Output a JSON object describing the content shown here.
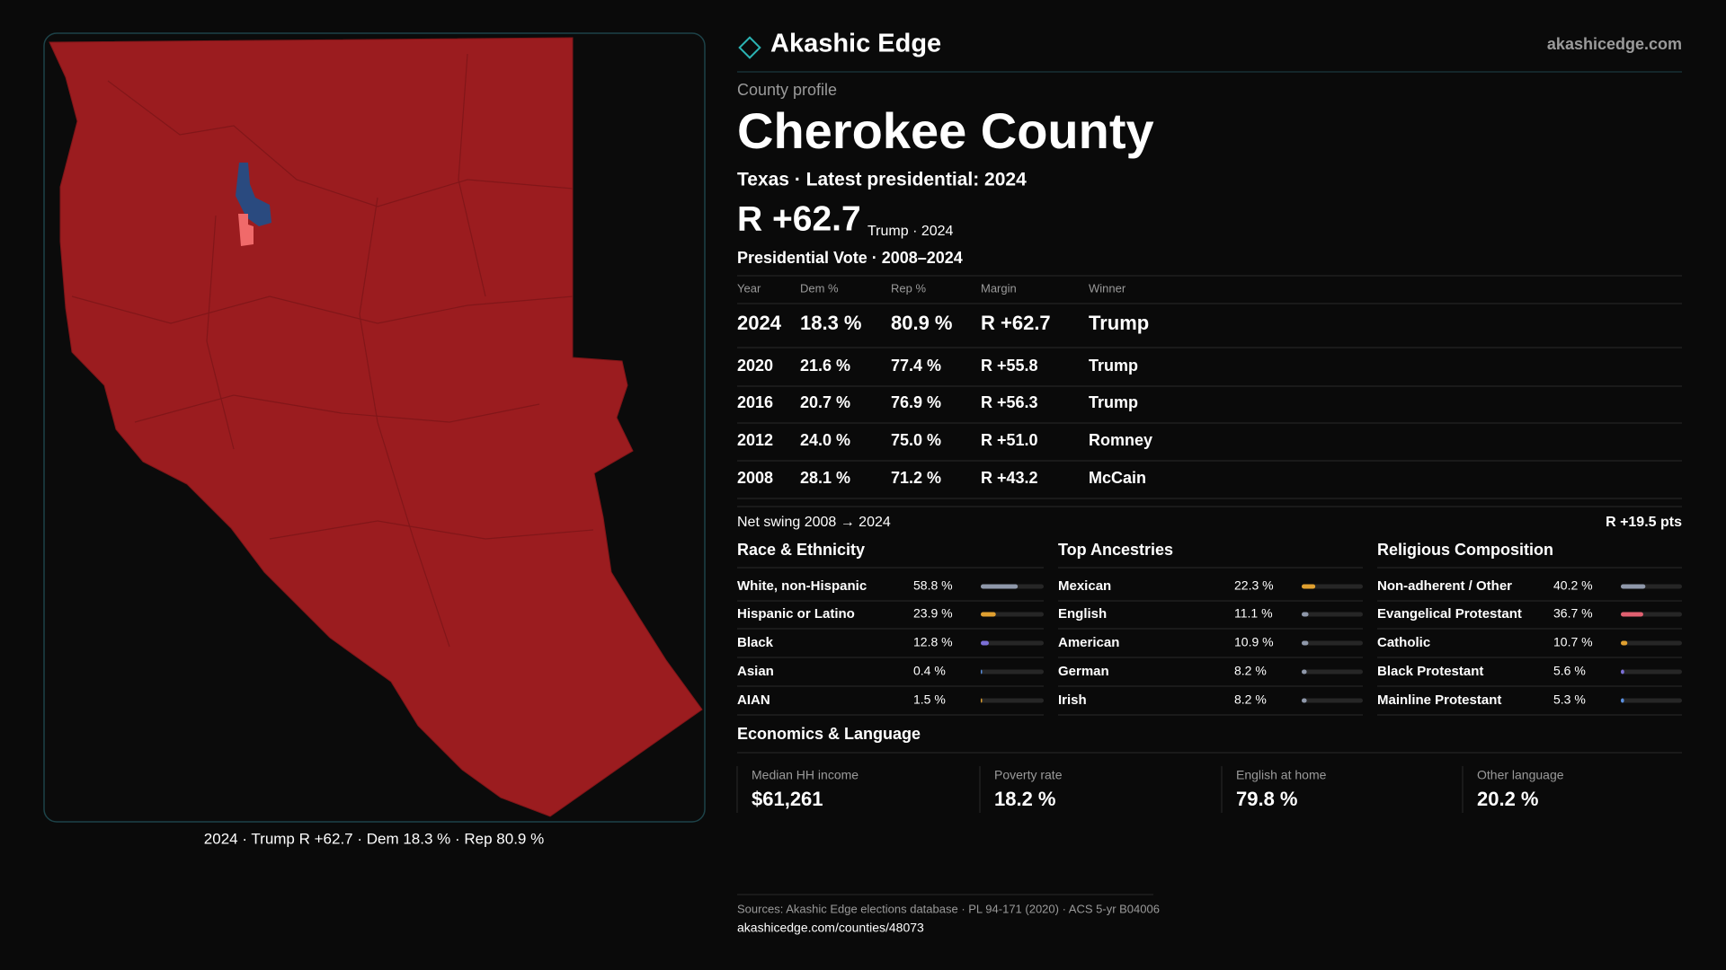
{
  "header": {
    "brand": "Akashic Edge",
    "site": "akashicedge.com"
  },
  "profile": {
    "eyebrow": "County profile",
    "name": "Cherokee County",
    "subtitle": "Texas · Latest presidential: 2024",
    "margin": "R +62.7",
    "margin_note": "Trump · 2024"
  },
  "map_caption": "2024 · Trump R +62.7 · Dem 18.3 % · Rep 80.9 %",
  "vote_table": {
    "title": "Presidential Vote · 2008–2024",
    "columns": [
      "Year",
      "Dem %",
      "Rep %",
      "Margin",
      "Winner"
    ],
    "rows": [
      [
        "2024",
        "18.3 %",
        "80.9 %",
        "R +62.7",
        "Trump"
      ],
      [
        "2020",
        "21.6 %",
        "77.4 %",
        "R +55.8",
        "Trump"
      ],
      [
        "2016",
        "20.7 %",
        "76.9 %",
        "R +56.3",
        "Trump"
      ],
      [
        "2012",
        "24.0 %",
        "75.0 %",
        "R +51.0",
        "Romney"
      ],
      [
        "2008",
        "28.1 %",
        "71.2 %",
        "R +43.2",
        "McCain"
      ]
    ]
  },
  "swing": {
    "label": "Net swing 2008 → 2024",
    "value": "R +19.5 pts"
  },
  "demographics": [
    {
      "title": "Race & Ethnicity",
      "rows": [
        {
          "name": "White, non-Hispanic",
          "share": {
            "value": 58.8,
            "label": "58.8 %"
          },
          "color": "#8f98aa"
        },
        {
          "name": "Hispanic or Latino",
          "share": {
            "value": 23.9,
            "label": "23.9 %"
          },
          "color": "#e0a030"
        },
        {
          "name": "Black",
          "share": {
            "value": 12.8,
            "label": "12.8 %"
          },
          "color": "#7b6fd6"
        },
        {
          "name": "Asian",
          "share": {
            "value": 0.4,
            "label": "0.4 %"
          },
          "color": "#5a8fe0"
        },
        {
          "name": "AIAN",
          "share": {
            "value": 1.5,
            "label": "1.5 %"
          },
          "color": "#e0a030"
        }
      ]
    },
    {
      "title": "Top Ancestries",
      "rows": [
        {
          "name": "Mexican",
          "share": {
            "value": 22.3,
            "label": "22.3 %"
          },
          "color": "#e0a030"
        },
        {
          "name": "English",
          "share": {
            "value": 11.1,
            "label": "11.1 %"
          },
          "color": "#8f98aa"
        },
        {
          "name": "American",
          "share": {
            "value": 10.9,
            "label": "10.9 %"
          },
          "color": "#8f98aa"
        },
        {
          "name": "German",
          "share": {
            "value": 8.2,
            "label": "8.2 %"
          },
          "color": "#8f98aa"
        },
        {
          "name": "Irish",
          "share": {
            "value": 8.2,
            "label": "8.2 %"
          },
          "color": "#8f98aa"
        }
      ]
    },
    {
      "title": "Religious Composition",
      "rows": [
        {
          "name": "Non-adherent / Other",
          "share": {
            "value": 40.2,
            "label": "40.2 %"
          },
          "color": "#8f98aa"
        },
        {
          "name": "Evangelical Protestant",
          "share": {
            "value": 36.7,
            "label": "36.7 %"
          },
          "color": "#e06070"
        },
        {
          "name": "Catholic",
          "share": {
            "value": 10.7,
            "label": "10.7 %"
          },
          "color": "#e0a030"
        },
        {
          "name": "Black Protestant",
          "share": {
            "value": 5.6,
            "label": "5.6 %"
          },
          "color": "#7b6fd6"
        },
        {
          "name": "Mainline Protestant",
          "share": {
            "value": 5.3,
            "label": "5.3 %"
          },
          "color": "#5a8fe0"
        }
      ]
    }
  ],
  "economics": {
    "title": "Economics & Language",
    "items": [
      {
        "label": "Median HH income",
        "value": "$61,261"
      },
      {
        "label": "Poverty rate",
        "value": "18.2 %"
      },
      {
        "label": "English at home",
        "value": "79.8 %"
      },
      {
        "label": "Other language",
        "value": "20.2 %"
      }
    ]
  },
  "footer": {
    "sources": "Sources: Akashic Edge elections database · PL 94-171 (2020) · ACS 5-yr B04006",
    "url": "akashicedge.com/counties/48073"
  }
}
